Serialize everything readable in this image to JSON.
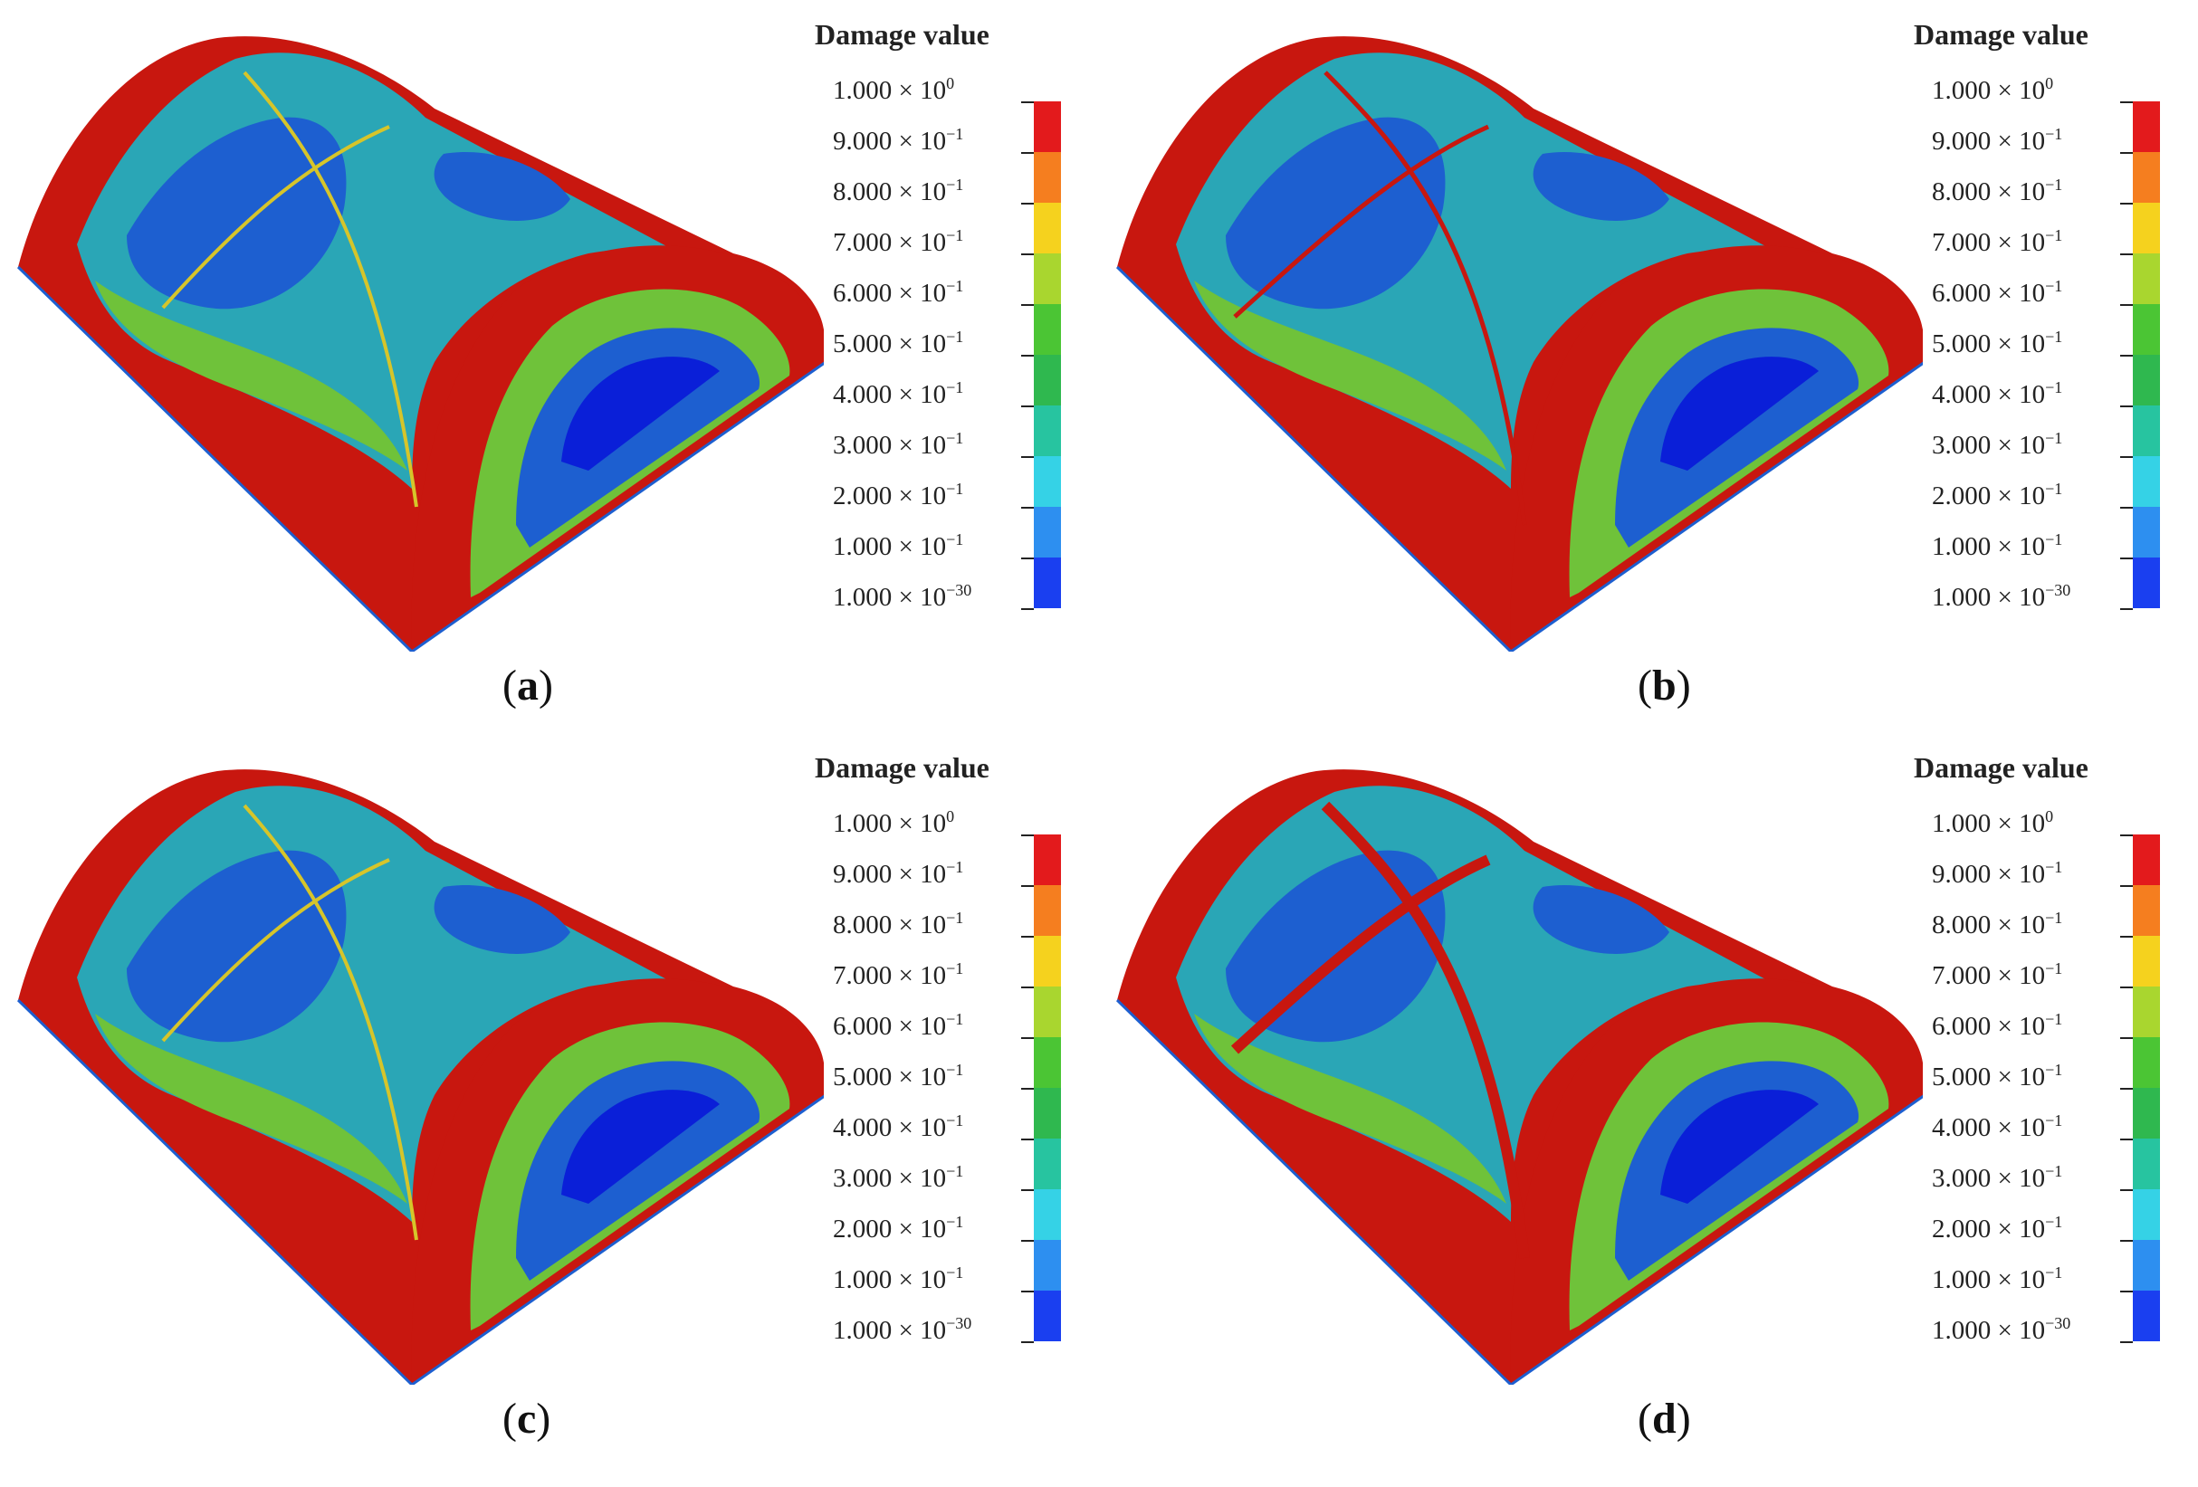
{
  "legend": {
    "title": "Damage value",
    "ticks": [
      {
        "mant": "1.000 × 10",
        "exp": "0"
      },
      {
        "mant": "9.000 × 10",
        "exp": "−1"
      },
      {
        "mant": "8.000 × 10",
        "exp": "−1"
      },
      {
        "mant": "7.000 × 10",
        "exp": "−1"
      },
      {
        "mant": "6.000 × 10",
        "exp": "−1"
      },
      {
        "mant": "5.000 × 10",
        "exp": "−1"
      },
      {
        "mant": "4.000 × 10",
        "exp": "−1"
      },
      {
        "mant": "3.000 × 10",
        "exp": "−1"
      },
      {
        "mant": "2.000 × 10",
        "exp": "−1"
      },
      {
        "mant": "1.000 × 10",
        "exp": "−1"
      },
      {
        "mant": "1.000 × 10",
        "exp": "−30"
      }
    ],
    "colors": [
      "#e31a1c",
      "#f57e1f",
      "#f5d21e",
      "#a9d62f",
      "#4bc534",
      "#2fb84f",
      "#27c4a0",
      "#35d2e6",
      "#2d8ff0",
      "#1a3ff0"
    ]
  },
  "panels": [
    {
      "label": "a"
    },
    {
      "label": "b"
    },
    {
      "label": "c"
    },
    {
      "label": "d"
    }
  ],
  "colors": {
    "red": "#c8170f",
    "green": "#6fc23a",
    "teal": "#2aa6b6",
    "blue": "#1d5fd0",
    "deepblue": "#0a1fd8",
    "yellow": "#d6c52a"
  }
}
